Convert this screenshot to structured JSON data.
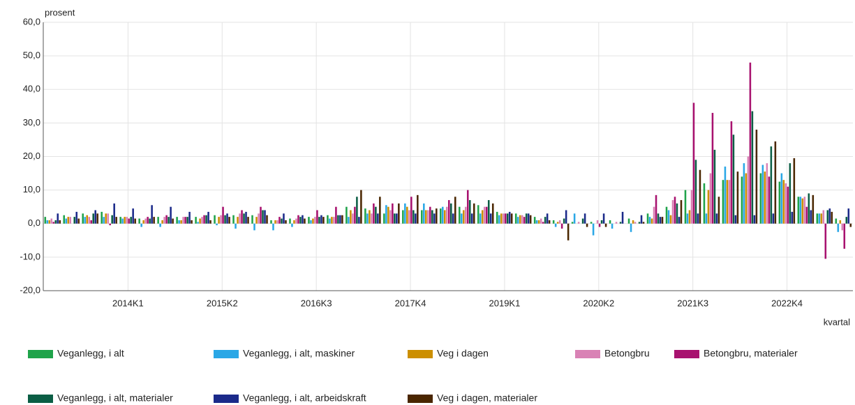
{
  "chart_data": {
    "type": "bar",
    "y_label": "prosent",
    "x_label": "kvartal",
    "categories": [
      null,
      null,
      null,
      null,
      "2014K1",
      null,
      null,
      null,
      null,
      "2015K2",
      null,
      null,
      null,
      null,
      "2016K3",
      null,
      null,
      null,
      null,
      "2017K4",
      null,
      null,
      null,
      null,
      "2019K1",
      null,
      null,
      null,
      null,
      "2020K2",
      null,
      null,
      null,
      null,
      "2021K3",
      null,
      null,
      null,
      null,
      "2022K4",
      null,
      null,
      null
    ],
    "ylim": [
      -20,
      60
    ],
    "yticks": [
      {
        "value": -20,
        "label": "-20,0"
      },
      {
        "value": -10,
        "label": "-10,0"
      },
      {
        "value": 0,
        "label": "0,0"
      },
      {
        "value": 10,
        "label": "10,0"
      },
      {
        "value": 20,
        "label": "20,0"
      },
      {
        "value": 30,
        "label": "30,0"
      },
      {
        "value": 40,
        "label": "40,0"
      },
      {
        "value": 50,
        "label": "50,0"
      },
      {
        "value": 60,
        "label": "60,0"
      }
    ],
    "grid": true,
    "series": [
      {
        "name": "Veganlegg, i alt",
        "color": "#1fa34a",
        "values": [
          2,
          2.5,
          3,
          3.5,
          2,
          1.5,
          2,
          2,
          2,
          2.5,
          2.5,
          2.5,
          1,
          1.5,
          2,
          2.5,
          5,
          4.5,
          3,
          4,
          4,
          4.5,
          5,
          5.5,
          3.5,
          3,
          2,
          1,
          0.5,
          0.5,
          1,
          1.5,
          3,
          5,
          10,
          12,
          13,
          14,
          15,
          12.5,
          8,
          3,
          1.5
        ]
      },
      {
        "name": "Veganlegg, i alt, maskiner",
        "color": "#2aa7e6",
        "values": [
          1,
          1.5,
          2,
          2,
          1.5,
          -1,
          -1,
          1,
          0.5,
          -0.5,
          -1.5,
          -2,
          -2,
          -1,
          1,
          1.5,
          2,
          3,
          5.5,
          6,
          6,
          5,
          3,
          3,
          2.5,
          2,
          1,
          -1,
          3,
          -3.5,
          -1.5,
          -2.5,
          2,
          4,
          3,
          3,
          17,
          18,
          17.5,
          15,
          8,
          3,
          -2.5
        ]
      },
      {
        "name": "Veg i dagen",
        "color": "#cc8f00",
        "values": [
          1,
          2,
          2.5,
          3,
          2,
          1,
          1,
          1,
          1.5,
          2,
          2,
          2,
          1,
          1,
          1.5,
          2,
          4,
          4,
          5,
          5,
          4,
          4,
          4,
          4,
          3,
          2.5,
          1,
          0.5,
          0,
          0,
          0,
          1,
          1.5,
          2.5,
          4,
          10,
          13,
          15,
          15.5,
          13,
          7.5,
          3,
          1
        ]
      },
      {
        "name": "Betongbru",
        "color": "#d982b5",
        "values": [
          1.5,
          2,
          2,
          3,
          2,
          1.5,
          2,
          2,
          2,
          2.5,
          3,
          3,
          1,
          1.5,
          2,
          2,
          3,
          3,
          4,
          4,
          4,
          5,
          5,
          5,
          3,
          2.5,
          1.5,
          1,
          0.5,
          1,
          0.5,
          0.5,
          5,
          7,
          10,
          15,
          13,
          20,
          18,
          12,
          8,
          4,
          -2
        ]
      },
      {
        "name": "Betongbru, materialer",
        "color": "#a8126f",
        "values": [
          0.5,
          0,
          1,
          -0.5,
          1.5,
          2,
          2.5,
          2,
          2.5,
          5,
          4,
          5,
          2,
          2.5,
          4,
          5,
          5,
          6,
          6,
          8,
          5,
          7,
          10,
          5,
          3,
          2,
          0.5,
          -1.5,
          0,
          -1,
          0,
          0,
          8.5,
          8,
          36,
          33,
          30.5,
          48,
          14,
          11,
          5,
          -10.5,
          -7.5
        ]
      },
      {
        "name": "Veganlegg, i alt, materialer",
        "color": "#0b5e45",
        "values": [
          1,
          2,
          3,
          2.5,
          2,
          1.5,
          2,
          2,
          2.5,
          2.5,
          3,
          4,
          1.5,
          2,
          2,
          2.5,
          8,
          5,
          3,
          4,
          4,
          6,
          7,
          7,
          3,
          3,
          2,
          1.5,
          1.5,
          1,
          0.5,
          0.5,
          3,
          6,
          19,
          22,
          26.5,
          33.5,
          23,
          18,
          9,
          4,
          2
        ]
      },
      {
        "name": "Veganlegg, i alt, arbeidskraft",
        "color": "#1b2a8a",
        "values": [
          3,
          3.5,
          4,
          6,
          4.5,
          5.5,
          5,
          3.5,
          3.5,
          3,
          3.5,
          4,
          3,
          2.5,
          2.5,
          2.5,
          2,
          3,
          3,
          3,
          3,
          3,
          3,
          3,
          3.5,
          3,
          3,
          4,
          3,
          3,
          3.5,
          2.5,
          2,
          2,
          3,
          3,
          2.5,
          2.5,
          3,
          3.5,
          4,
          4.5,
          4.5
        ]
      },
      {
        "name": "Veg i dagen, materialer",
        "color": "#4a2600",
        "values": [
          1,
          1.5,
          3,
          2,
          1.5,
          2,
          1.5,
          1,
          1,
          2,
          2,
          2.5,
          1,
          1.5,
          2,
          2.5,
          10,
          8,
          6,
          8.5,
          4.5,
          8,
          6,
          6,
          3,
          2.5,
          1,
          -5,
          -1,
          -1,
          0,
          0.5,
          2,
          7,
          16,
          8,
          15.5,
          28,
          24.5,
          19.5,
          8.5,
          3.5,
          -1
        ]
      }
    ]
  }
}
